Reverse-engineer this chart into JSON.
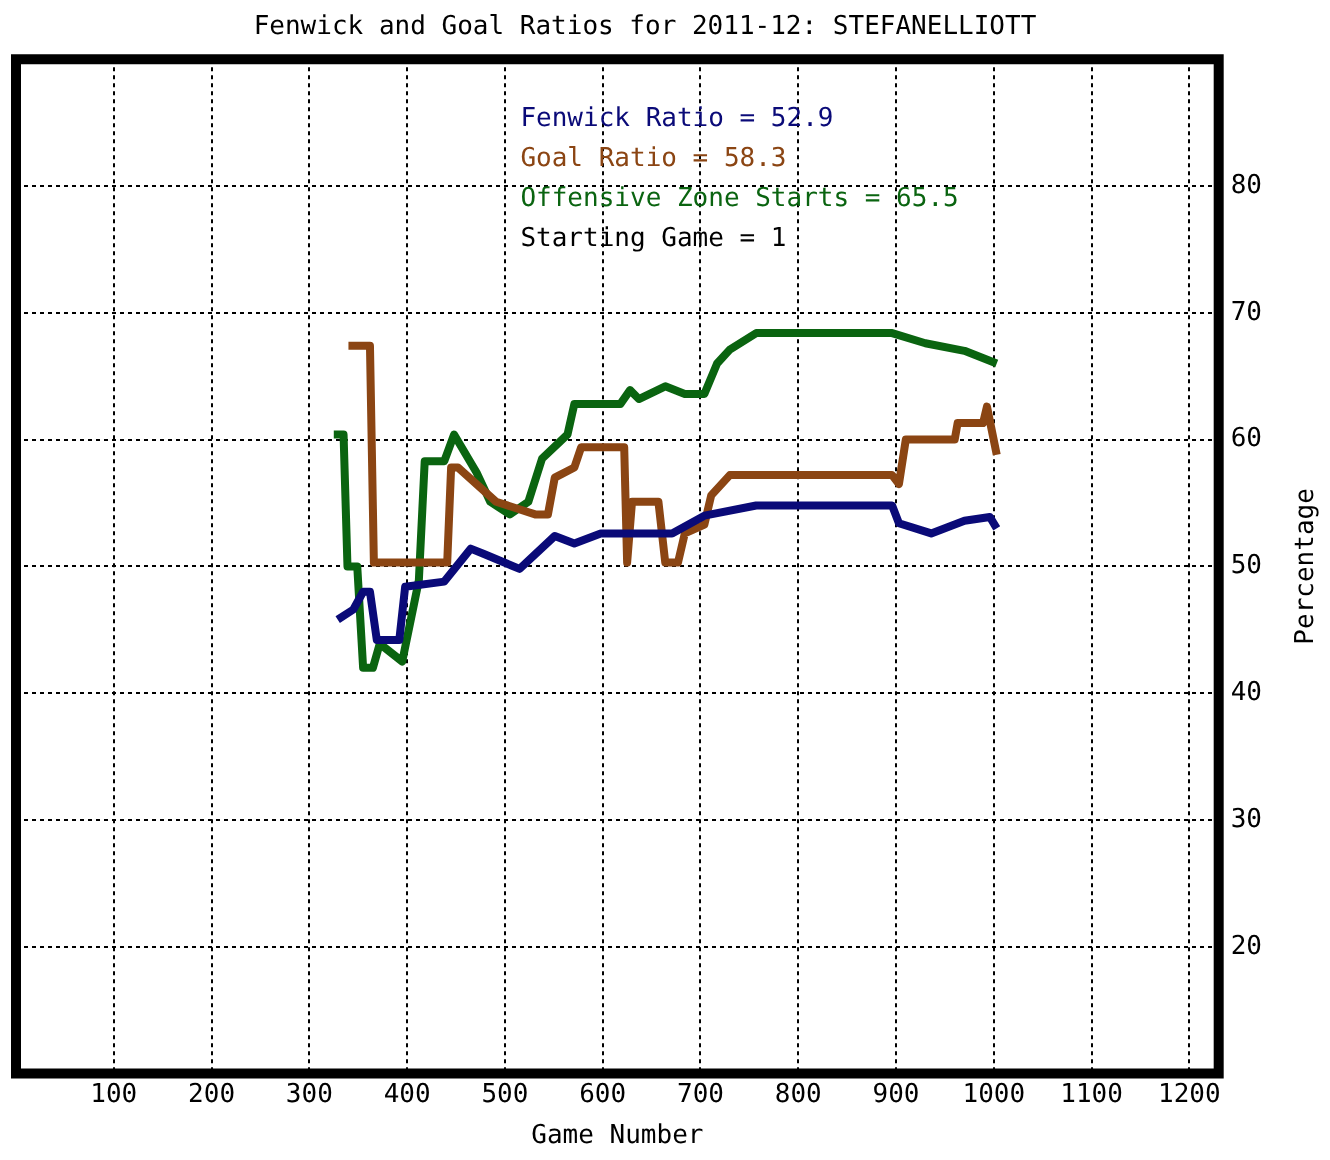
{
  "chart_data": {
    "type": "line",
    "title": "Fenwick and Goal Ratios for 2011-12: STEFANELLIOTT",
    "xlabel": "Game Number",
    "ylabel": "Percentage",
    "xlim": [
      0,
      1230
    ],
    "xticks": [
      100,
      200,
      300,
      400,
      500,
      600,
      700,
      800,
      900,
      1000,
      1100,
      1200
    ],
    "ylim": [
      10,
      90
    ],
    "yticks": [
      20,
      30,
      40,
      50,
      60,
      70,
      80
    ],
    "grid": true,
    "legend": "top right",
    "annotations": [
      "Starting Game = 1"
    ],
    "series": [
      {
        "name": "Fenwick Ratio = 52.9",
        "color": "#0a0a78",
        "x": [
          329,
          345,
          355,
          362,
          369,
          392,
          398,
          438,
          465,
          478,
          515,
          551,
          571,
          598,
          671,
          704,
          757,
          896,
          903,
          936,
          970,
          996,
          1003
        ],
        "values": [
          45.8,
          46.6,
          48.0,
          48.0,
          44.2,
          44.2,
          48.4,
          48.8,
          51.4,
          51.0,
          49.8,
          52.4,
          51.8,
          52.6,
          52.6,
          54.0,
          54.8,
          54.8,
          53.4,
          52.6,
          53.6,
          53.9,
          53.0
        ]
      },
      {
        "name": "Goal Ratio = 58.3",
        "color": "#8b4513",
        "x": [
          340,
          362,
          366,
          441,
          445,
          452,
          491,
          531,
          544,
          551,
          571,
          578,
          622,
          625,
          630,
          657,
          664,
          677,
          684,
          704,
          711,
          730,
          896,
          903,
          910,
          960,
          963,
          989,
          993,
          1003
        ],
        "values": [
          67.4,
          67.4,
          50.3,
          50.3,
          57.8,
          57.8,
          55.1,
          54.1,
          54.1,
          57.0,
          57.8,
          59.4,
          59.4,
          50.3,
          55.1,
          55.1,
          50.3,
          50.3,
          52.6,
          53.3,
          55.6,
          57.2,
          57.2,
          56.5,
          60,
          60,
          61.3,
          61.3,
          62.6,
          58.8
        ]
      },
      {
        "name": "Offensive Zone Starts = 65.5",
        "color": "#0a6410",
        "x": [
          325,
          335,
          339,
          349,
          355,
          365,
          372,
          395,
          412,
          418,
          438,
          448,
          471,
          485,
          505,
          524,
          538,
          564,
          571,
          618,
          628,
          637,
          664,
          684,
          704,
          717,
          730,
          757,
          896,
          930,
          970,
          1003
        ],
        "values": [
          60.4,
          60.4,
          50,
          50,
          42,
          42,
          43.9,
          42.5,
          48.9,
          58.3,
          58.3,
          60.4,
          57.4,
          55.1,
          54.1,
          55.1,
          58.5,
          60.4,
          62.8,
          62.8,
          63.9,
          63.2,
          64.2,
          63.6,
          63.6,
          66,
          67.1,
          68.4,
          68.4,
          67.6,
          67.0,
          66.0
        ]
      }
    ]
  }
}
